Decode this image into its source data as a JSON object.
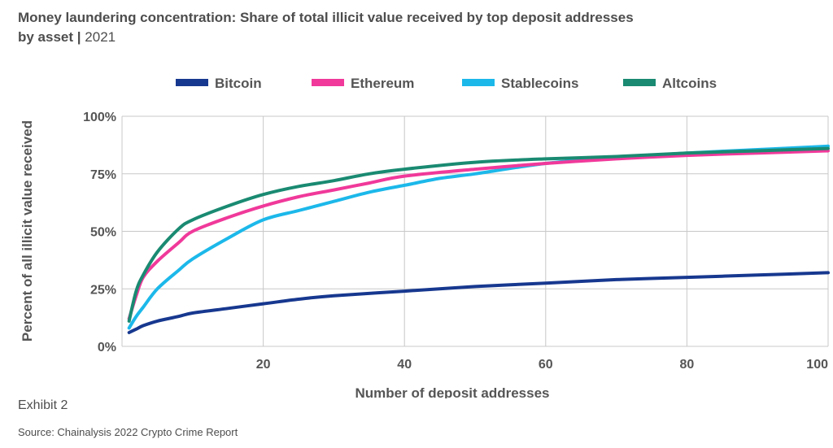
{
  "title": {
    "main": "Money laundering concentration: Share of total illicit value received by top deposit addresses by asset",
    "separator": "|",
    "year": "2021"
  },
  "footer": {
    "exhibit": "Exhibit 2",
    "source": "Source: Chainalysis 2022 Crypto Crime Report"
  },
  "chart_data": {
    "type": "line",
    "title": "Money laundering concentration: Share of total illicit value received by top deposit addresses by asset | 2021",
    "xlabel": "Number of deposit addresses",
    "ylabel": "Percent of all illicit value received",
    "xlim": [
      0,
      100
    ],
    "ylim": [
      0,
      100
    ],
    "xticks": [
      20,
      40,
      60,
      80,
      100
    ],
    "xtick_labels": [
      "20",
      "40",
      "60",
      "80",
      "100"
    ],
    "yticks": [
      0,
      25,
      50,
      75,
      100
    ],
    "ytick_labels": [
      "0%",
      "25%",
      "50%",
      "75%",
      "100%"
    ],
    "grid": "vertical and horizontal",
    "legend_position": "top",
    "series": [
      {
        "name": "Bitcoin",
        "color": "#17388f",
        "x": [
          1,
          2,
          3,
          5,
          8,
          10,
          15,
          20,
          25,
          30,
          40,
          50,
          60,
          70,
          80,
          90,
          100
        ],
        "y": [
          6,
          7.5,
          9,
          11,
          13,
          14.5,
          16.5,
          18.5,
          20.5,
          22,
          24,
          26,
          27.5,
          29,
          30,
          31,
          32
        ]
      },
      {
        "name": "Ethereum",
        "color": "#f0399a",
        "x": [
          1,
          2,
          3,
          5,
          8,
          10,
          15,
          20,
          25,
          30,
          35,
          40,
          50,
          60,
          70,
          80,
          90,
          100
        ],
        "y": [
          12,
          22,
          30,
          37,
          45,
          50,
          56,
          61,
          65,
          68,
          71,
          74,
          77,
          79.5,
          81.5,
          83,
          84,
          85
        ]
      },
      {
        "name": "Stablecoins",
        "color": "#1cb8ea",
        "x": [
          1,
          2,
          3,
          5,
          8,
          10,
          15,
          20,
          25,
          30,
          35,
          40,
          45,
          50,
          60,
          70,
          80,
          90,
          100
        ],
        "y": [
          8,
          13,
          17,
          25,
          33,
          38,
          47,
          55,
          59,
          63,
          67,
          70,
          73,
          75,
          79.5,
          82,
          84,
          85.5,
          87
        ]
      },
      {
        "name": "Altcoins",
        "color": "#1a8a72",
        "x": [
          1,
          2,
          3,
          5,
          8,
          10,
          15,
          20,
          25,
          30,
          35,
          40,
          50,
          60,
          70,
          80,
          90,
          100
        ],
        "y": [
          11,
          24,
          31,
          41,
          51,
          55,
          61,
          66,
          69.5,
          72,
          75,
          77,
          80,
          81.5,
          82.5,
          84,
          85,
          86
        ]
      }
    ]
  }
}
